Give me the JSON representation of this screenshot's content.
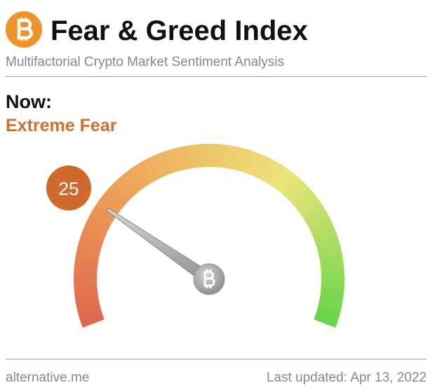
{
  "chart_data": {
    "type": "gauge",
    "title": "Fear & Greed Index",
    "subtitle": "Multifactorial Crypto Market Sentiment Analysis",
    "label": "Now:",
    "classification": "Extreme Fear",
    "value": 25,
    "ylim": [
      0,
      100
    ],
    "colors": [
      "#e0664c",
      "#eea85a",
      "#ece47a",
      "#66d448"
    ],
    "source": "alternative.me",
    "updated": "Last updated: Apr 13, 2022"
  }
}
